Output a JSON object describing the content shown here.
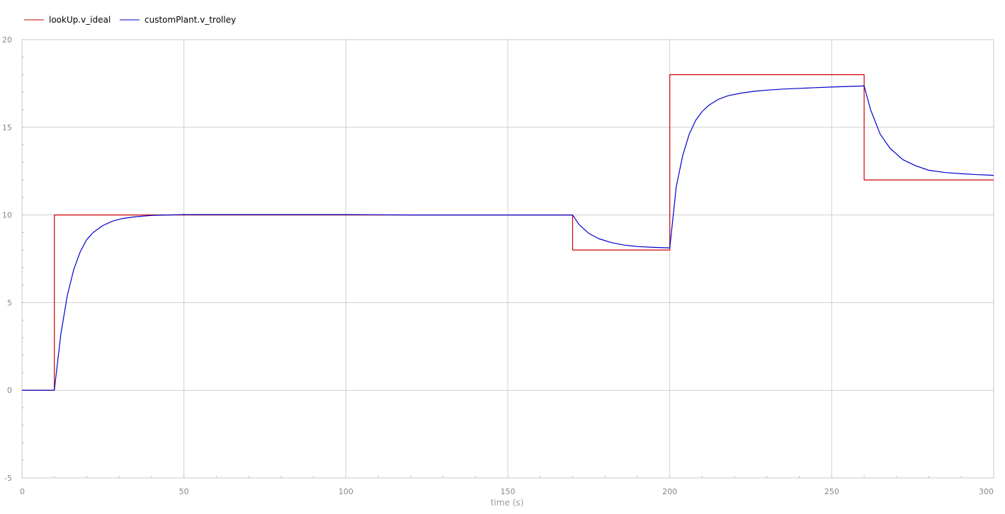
{
  "chart_data": {
    "type": "line",
    "title": "",
    "xlabel": "time (s)",
    "ylabel": "",
    "xlim": [
      0,
      300
    ],
    "ylim": [
      -5,
      20
    ],
    "x_ticks": [
      0,
      50,
      100,
      150,
      200,
      250,
      300
    ],
    "y_ticks": [
      -5,
      0,
      5,
      10,
      15,
      20
    ],
    "x_tick_labels": [
      "0",
      "50",
      "100",
      "150",
      "200",
      "250",
      "300"
    ],
    "y_tick_labels": [
      "-5",
      "0",
      "5",
      "10",
      "15",
      "20"
    ],
    "grid": true,
    "legend_position": "top-left",
    "series": [
      {
        "name": "lookUp.v_ideal",
        "color": "#cc0000",
        "x": [
          0,
          10,
          10,
          170,
          170,
          200,
          200,
          260,
          260,
          300
        ],
        "y": [
          0,
          0,
          10,
          10,
          8,
          8,
          18,
          18,
          12,
          12
        ]
      },
      {
        "name": "customPlant.v_trolley",
        "color": "#0000cc",
        "x": [
          0,
          10,
          12,
          14,
          16,
          18,
          20,
          22,
          25,
          28,
          31,
          35,
          40,
          45,
          50,
          60,
          80,
          100,
          120,
          140,
          160,
          170,
          172,
          175,
          178,
          182,
          186,
          190,
          195,
          200,
          202,
          204,
          206,
          208,
          210,
          212,
          215,
          218,
          222,
          226,
          230,
          235,
          240,
          245,
          250,
          255,
          260,
          262,
          265,
          268,
          272,
          276,
          280,
          285,
          290,
          295,
          300
        ],
        "y": [
          0,
          0,
          3.2,
          5.4,
          6.9,
          7.9,
          8.6,
          9.0,
          9.4,
          9.65,
          9.8,
          9.9,
          9.97,
          10.0,
          10.02,
          10.02,
          10.02,
          10.02,
          10.0,
          10.0,
          10.0,
          10.0,
          9.45,
          8.95,
          8.65,
          8.42,
          8.28,
          8.2,
          8.15,
          8.12,
          11.6,
          13.4,
          14.6,
          15.4,
          15.9,
          16.25,
          16.6,
          16.8,
          16.95,
          17.05,
          17.12,
          17.18,
          17.22,
          17.26,
          17.3,
          17.33,
          17.36,
          16.0,
          14.6,
          13.8,
          13.15,
          12.8,
          12.55,
          12.42,
          12.35,
          12.3,
          12.26
        ]
      }
    ]
  }
}
